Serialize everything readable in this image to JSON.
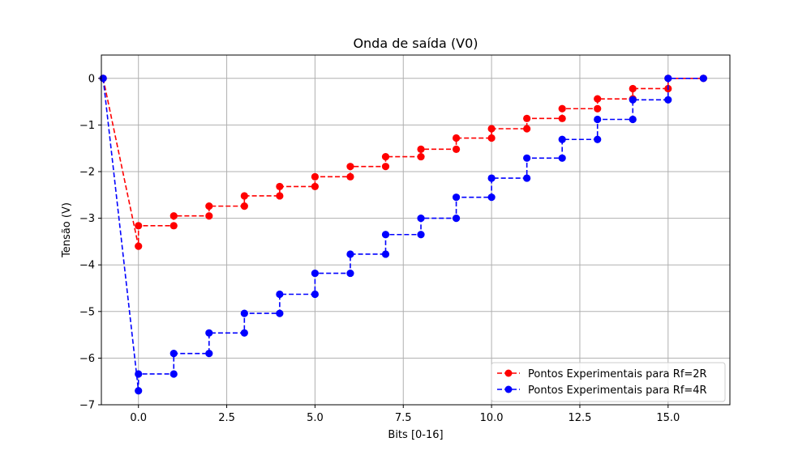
{
  "chart_data": {
    "type": "line",
    "title": "Onda de saída (V0)",
    "xlabel": "Bits [0-16]",
    "ylabel": "Tensão (V)",
    "xlim": [
      -1.05,
      16.75
    ],
    "ylim": [
      -7.0,
      0.5
    ],
    "xticks": [
      0.0,
      2.5,
      5.0,
      7.5,
      10.0,
      12.5,
      15.0
    ],
    "xtick_labels": [
      "0.0",
      "2.5",
      "5.0",
      "7.5",
      "10.0",
      "12.5",
      "15.0"
    ],
    "yticks": [
      0,
      -1,
      -2,
      -3,
      -4,
      -5,
      -6,
      -7
    ],
    "ytick_labels": [
      "0",
      "−1",
      "−2",
      "−3",
      "−4",
      "−5",
      "−6",
      "−7"
    ],
    "grid": true,
    "legend_position": "lower-right",
    "series": [
      {
        "name": "Pontos Experimentais para Rf=2R",
        "color": "#ff0000",
        "x": [
          -1,
          0,
          0,
          1,
          1,
          2,
          2,
          3,
          3,
          4,
          4,
          5,
          5,
          6,
          6,
          7,
          7,
          8,
          8,
          9,
          9,
          10,
          10,
          11,
          11,
          12,
          12,
          13,
          13,
          14,
          14,
          15,
          15,
          16
        ],
        "y": [
          0,
          -3.6,
          -3.16,
          -3.16,
          -2.95,
          -2.95,
          -2.74,
          -2.74,
          -2.52,
          -2.52,
          -2.32,
          -2.32,
          -2.11,
          -2.11,
          -1.89,
          -1.89,
          -1.68,
          -1.68,
          -1.52,
          -1.52,
          -1.28,
          -1.28,
          -1.08,
          -1.08,
          -0.86,
          -0.86,
          -0.65,
          -0.65,
          -0.44,
          -0.44,
          -0.22,
          -0.22,
          0,
          0
        ]
      },
      {
        "name": "Pontos Experimentais para Rf=4R",
        "color": "#0000ff",
        "x": [
          -1,
          0,
          0,
          1,
          1,
          2,
          2,
          3,
          3,
          4,
          4,
          5,
          5,
          6,
          6,
          7,
          7,
          8,
          8,
          9,
          9,
          10,
          10,
          11,
          11,
          12,
          12,
          13,
          13,
          14,
          14,
          15,
          15,
          16
        ],
        "y": [
          0,
          -6.7,
          -6.34,
          -6.34,
          -5.9,
          -5.9,
          -5.46,
          -5.46,
          -5.04,
          -5.04,
          -4.63,
          -4.63,
          -4.18,
          -4.18,
          -3.77,
          -3.77,
          -3.35,
          -3.35,
          -3.0,
          -3.0,
          -2.55,
          -2.55,
          -2.14,
          -2.14,
          -1.71,
          -1.71,
          -1.31,
          -1.31,
          -0.88,
          -0.88,
          -0.46,
          -0.46,
          0,
          0
        ]
      }
    ]
  }
}
